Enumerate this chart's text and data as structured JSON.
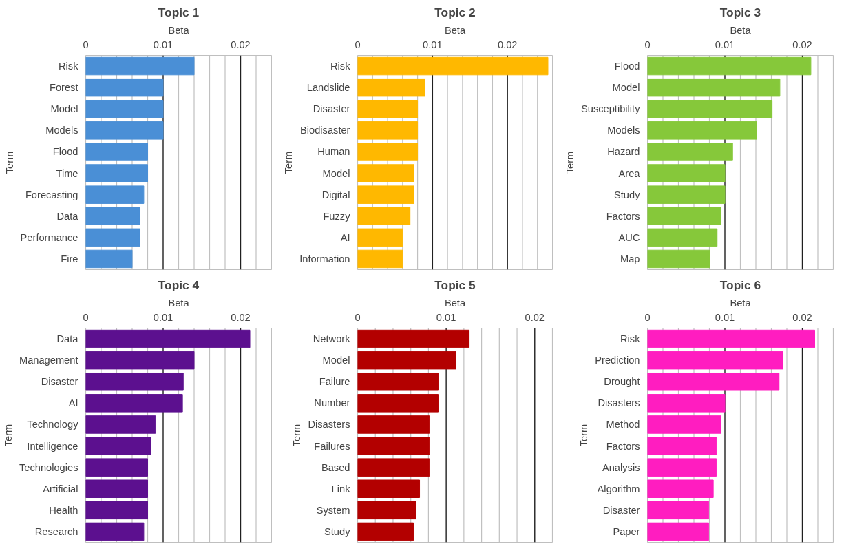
{
  "chart_data": [
    {
      "type": "bar",
      "orientation": "horizontal",
      "title": "Topic 1",
      "xlabel": "Beta",
      "ylabel": "Term",
      "categories": [
        "Risk",
        "Forest",
        "Model",
        "Models",
        "Flood",
        "Time",
        "Forecasting",
        "Data",
        "Performance",
        "Fire"
      ],
      "values": [
        0.014,
        0.01,
        0.01,
        0.01,
        0.008,
        0.008,
        0.0075,
        0.007,
        0.007,
        0.006
      ],
      "color": "#4a8fd6",
      "xlim": [
        0,
        0.024
      ],
      "xticks": [
        0,
        {
          "value": 0.002,
          "label": null
        },
        {
          "value": 0.004,
          "label": null
        },
        {
          "value": 0.006,
          "label": null
        },
        {
          "value": 0.008,
          "label": null
        },
        0.01,
        {
          "value": 0.012,
          "label": null
        },
        {
          "value": 0.014,
          "label": null
        },
        {
          "value": 0.016,
          "label": null
        },
        {
          "value": 0.018,
          "label": null
        },
        0.02,
        {
          "value": 0.022,
          "label": null
        },
        {
          "value": 0.024,
          "label": null
        }
      ],
      "grid": "x"
    },
    {
      "type": "bar",
      "orientation": "horizontal",
      "title": "Topic 2",
      "xlabel": "Beta",
      "ylabel": "Term",
      "categories": [
        "Risk",
        "Landslide",
        "Disaster",
        "Biodisaster",
        "Human",
        "Model",
        "Digital",
        "Fuzzy",
        "AI",
        "Information"
      ],
      "values": [
        0.0254,
        0.009,
        0.008,
        0.008,
        0.008,
        0.0075,
        0.0075,
        0.007,
        0.006,
        0.006
      ],
      "color": "#ffb800",
      "xlim": [
        0,
        0.026
      ],
      "xticks": [
        0,
        {
          "value": 0.002,
          "label": null
        },
        {
          "value": 0.004,
          "label": null
        },
        {
          "value": 0.006,
          "label": null
        },
        {
          "value": 0.008,
          "label": null
        },
        0.01,
        {
          "value": 0.012,
          "label": null
        },
        {
          "value": 0.014,
          "label": null
        },
        {
          "value": 0.016,
          "label": null
        },
        {
          "value": 0.018,
          "label": null
        },
        0.02,
        {
          "value": 0.022,
          "label": null
        },
        {
          "value": 0.024,
          "label": null
        }
      ],
      "grid": "x"
    },
    {
      "type": "bar",
      "orientation": "horizontal",
      "title": "Topic 3",
      "xlabel": "Beta",
      "ylabel": "Term",
      "categories": [
        "Flood",
        "Model",
        "Susceptibility",
        "Models",
        "Hazard",
        "Area",
        "Study",
        "Factors",
        "AUC",
        "Map"
      ],
      "values": [
        0.0211,
        0.0171,
        0.0161,
        0.0141,
        0.011,
        0.01,
        0.01,
        0.0095,
        0.009,
        0.008
      ],
      "color": "#86c83a",
      "xlim": [
        0,
        0.024
      ],
      "xticks": [
        0,
        {
          "value": 0.002,
          "label": null
        },
        {
          "value": 0.004,
          "label": null
        },
        {
          "value": 0.006,
          "label": null
        },
        {
          "value": 0.008,
          "label": null
        },
        0.01,
        {
          "value": 0.012,
          "label": null
        },
        {
          "value": 0.014,
          "label": null
        },
        {
          "value": 0.016,
          "label": null
        },
        {
          "value": 0.018,
          "label": null
        },
        0.02,
        {
          "value": 0.022,
          "label": null
        },
        {
          "value": 0.024,
          "label": null
        }
      ],
      "grid": "x"
    },
    {
      "type": "bar",
      "orientation": "horizontal",
      "title": "Topic 4",
      "xlabel": "Beta",
      "ylabel": "Term",
      "categories": [
        "Data",
        "Management",
        "Disaster",
        "AI",
        "Technology",
        "Intelligence",
        "Technologies",
        "Artificial",
        "Health",
        "Research"
      ],
      "values": [
        0.0212,
        0.014,
        0.0126,
        0.0125,
        0.009,
        0.0084,
        0.008,
        0.008,
        0.008,
        0.0075
      ],
      "color": "#5c108f",
      "xlim": [
        0,
        0.024
      ],
      "xticks": [
        0,
        {
          "value": 0.002,
          "label": null
        },
        {
          "value": 0.004,
          "label": null
        },
        {
          "value": 0.006,
          "label": null
        },
        {
          "value": 0.008,
          "label": null
        },
        0.01,
        {
          "value": 0.012,
          "label": null
        },
        {
          "value": 0.014,
          "label": null
        },
        {
          "value": 0.016,
          "label": null
        },
        {
          "value": 0.018,
          "label": null
        },
        0.02,
        {
          "value": 0.022,
          "label": null
        },
        {
          "value": 0.024,
          "label": null
        }
      ],
      "grid": "x"
    },
    {
      "type": "bar",
      "orientation": "horizontal",
      "title": "Topic 5",
      "xlabel": "Beta",
      "ylabel": "Term",
      "categories": [
        "Network",
        "Model",
        "Failure",
        "Number",
        "Disasters",
        "Failures",
        "Based",
        "Link",
        "System",
        "Study"
      ],
      "values": [
        0.0126,
        0.0111,
        0.0091,
        0.0091,
        0.0081,
        0.0081,
        0.0081,
        0.007,
        0.0066,
        0.0063
      ],
      "color": "#b30000",
      "xlim": [
        0,
        0.022
      ],
      "xticks": [
        0,
        {
          "value": 0.002,
          "label": null
        },
        {
          "value": 0.004,
          "label": null
        },
        {
          "value": 0.006,
          "label": null
        },
        {
          "value": 0.008,
          "label": null
        },
        0.01,
        {
          "value": 0.012,
          "label": null
        },
        {
          "value": 0.014,
          "label": null
        },
        {
          "value": 0.016,
          "label": null
        },
        {
          "value": 0.018,
          "label": null
        },
        0.02,
        {
          "value": 0.022,
          "label": null
        }
      ],
      "grid": "x"
    },
    {
      "type": "bar",
      "orientation": "horizontal",
      "title": "Topic 6",
      "xlabel": "Beta",
      "ylabel": "Term",
      "categories": [
        "Risk",
        "Prediction",
        "Drought",
        "Disasters",
        "Method",
        "Factors",
        "Analysis",
        "Algorithm",
        "Disaster",
        "Paper"
      ],
      "values": [
        0.0216,
        0.0175,
        0.017,
        0.01,
        0.0095,
        0.0089,
        0.0089,
        0.0085,
        0.0079,
        0.0079
      ],
      "color": "#ff1dc0",
      "xlim": [
        0,
        0.024
      ],
      "xticks": [
        0,
        {
          "value": 0.002,
          "label": null
        },
        {
          "value": 0.004,
          "label": null
        },
        {
          "value": 0.006,
          "label": null
        },
        {
          "value": 0.008,
          "label": null
        },
        0.01,
        {
          "value": 0.012,
          "label": null
        },
        {
          "value": 0.014,
          "label": null
        },
        {
          "value": 0.016,
          "label": null
        },
        {
          "value": 0.018,
          "label": null
        },
        0.02,
        {
          "value": 0.022,
          "label": null
        },
        {
          "value": 0.024,
          "label": null
        }
      ],
      "grid": "x"
    }
  ]
}
